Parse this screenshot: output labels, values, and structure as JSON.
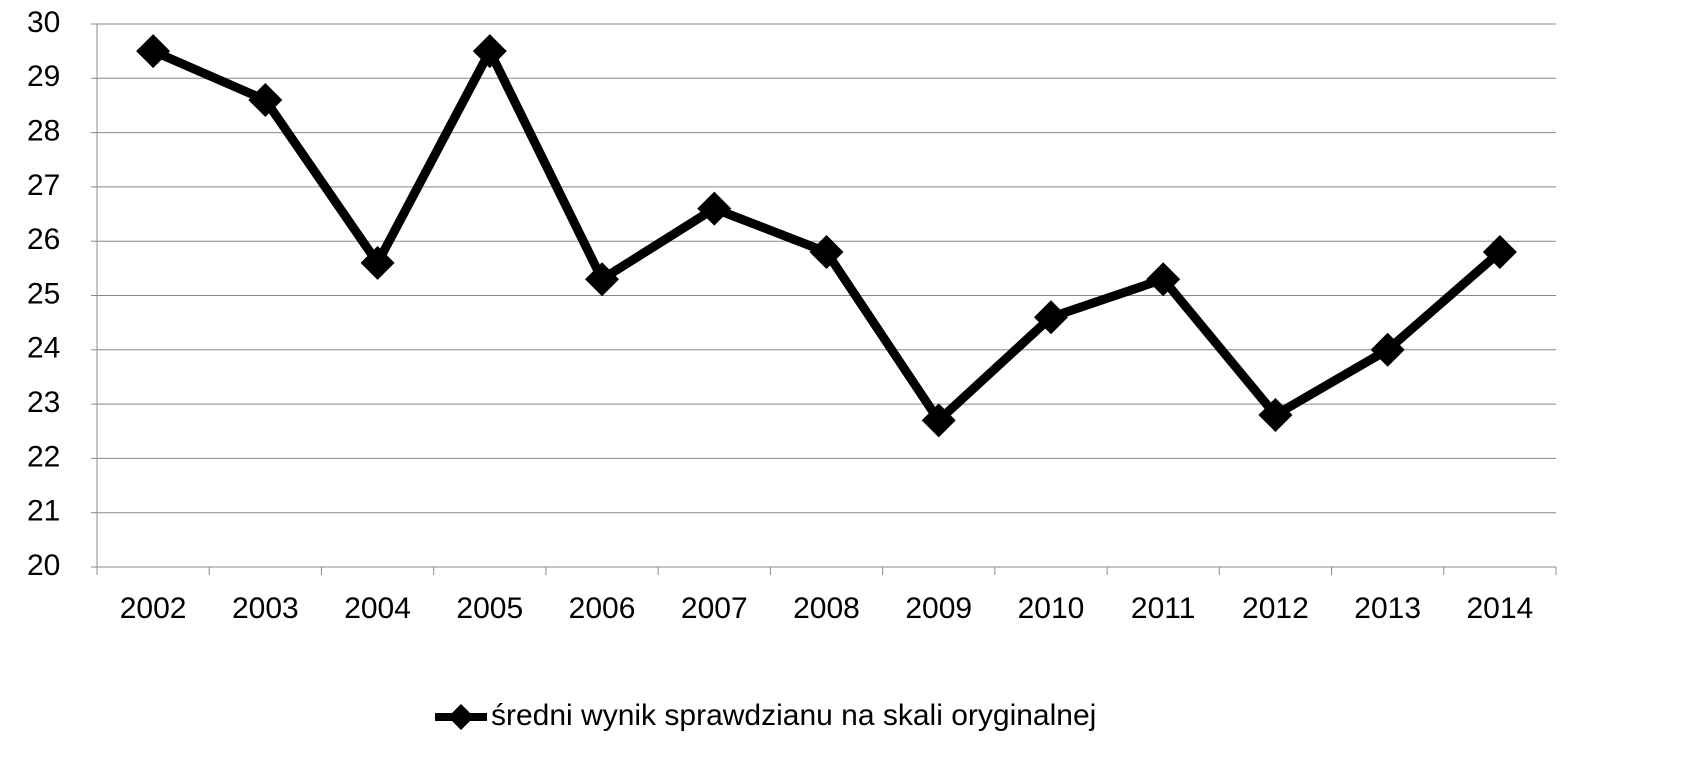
{
  "chart_data": {
    "type": "line",
    "categories": [
      "2002",
      "2003",
      "2004",
      "2005",
      "2006",
      "2007",
      "2008",
      "2009",
      "2010",
      "2011",
      "2012",
      "2013",
      "2014"
    ],
    "series": [
      {
        "name": "średni wynik sprawdzianu na skali oryginalnej",
        "color": "#000000",
        "values": [
          29.5,
          28.6,
          25.6,
          29.5,
          25.3,
          26.6,
          25.8,
          22.7,
          24.6,
          25.3,
          22.8,
          24.0,
          25.8
        ]
      }
    ],
    "ylim": [
      20,
      30
    ],
    "yticks": [
      20,
      21,
      22,
      23,
      24,
      25,
      26,
      27,
      28,
      29,
      30
    ],
    "grid": true,
    "legend": "bottom"
  }
}
